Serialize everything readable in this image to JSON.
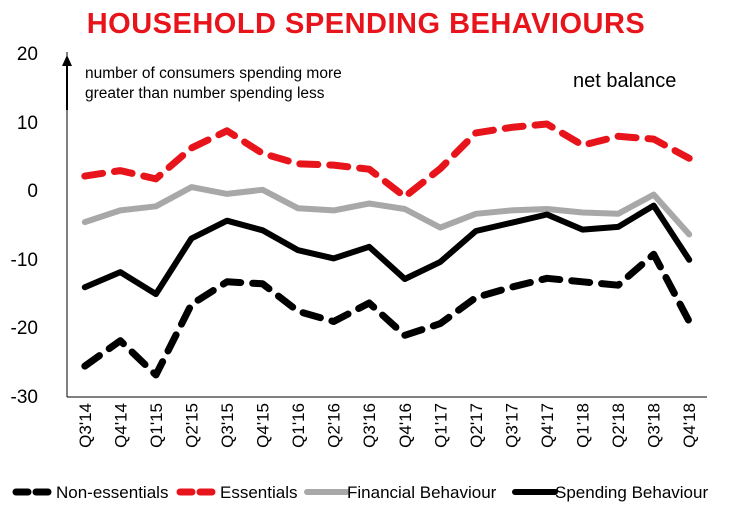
{
  "chart_data": {
    "type": "line",
    "title": "HOUSEHOLD SPENDING BEHAVIOURS",
    "annotation": {
      "line1": "number of consumers spending more",
      "line2": "greater than number spending less",
      "label": "net balance"
    },
    "categories": [
      "Q3'14",
      "Q4'14",
      "Q1'15",
      "Q2'15",
      "Q3'15",
      "Q4'15",
      "Q1'16",
      "Q2'16",
      "Q3'16",
      "Q4'16",
      "Q1'17",
      "Q2'17",
      "Q3'17",
      "Q4'17",
      "Q1'18",
      "Q2'18",
      "Q3'18",
      "Q4'18"
    ],
    "ylim": [
      -30,
      20
    ],
    "yticks": [
      20,
      10,
      0,
      -10,
      -20,
      -30
    ],
    "ytick_labels": [
      "20",
      "10",
      "0",
      "-10",
      "-20",
      "-30"
    ],
    "series": [
      {
        "name": "Non-essentials",
        "color": "#000000",
        "style": "dashed",
        "values": [
          -25.5,
          -21.8,
          -26.8,
          -16.5,
          -13.2,
          -13.5,
          -17.5,
          -19,
          -16.3,
          -21,
          -19.3,
          -15.5,
          -14,
          -12.7,
          -13.2,
          -13.7,
          -9.2,
          -19
        ]
      },
      {
        "name": "Essentials",
        "color": "#e8141b",
        "style": "dashed",
        "values": [
          2.2,
          3,
          1.8,
          6.3,
          8.8,
          5.5,
          4,
          3.8,
          3.2,
          -0.8,
          3.3,
          8.5,
          9.3,
          9.8,
          6.7,
          8,
          7.6,
          4.8
        ]
      },
      {
        "name": "Financial Behaviour",
        "color": "#a8a8a8",
        "style": "solid",
        "values": [
          -4.5,
          -2.8,
          -2.2,
          0.6,
          -0.4,
          0.2,
          -2.5,
          -2.8,
          -1.8,
          -2.6,
          -5.3,
          -3.3,
          -2.8,
          -2.6,
          -3.1,
          -3.3,
          -0.5,
          -6.3
        ]
      },
      {
        "name": "Spending Behaviour",
        "color": "#000000",
        "style": "solid",
        "values": [
          -14,
          -11.8,
          -15,
          -6.9,
          -4.3,
          -5.7,
          -8.6,
          -9.8,
          -8.1,
          -12.8,
          -10.3,
          -5.8,
          -4.6,
          -3.4,
          -5.6,
          -5.2,
          -2.1,
          -10
        ]
      }
    ]
  }
}
